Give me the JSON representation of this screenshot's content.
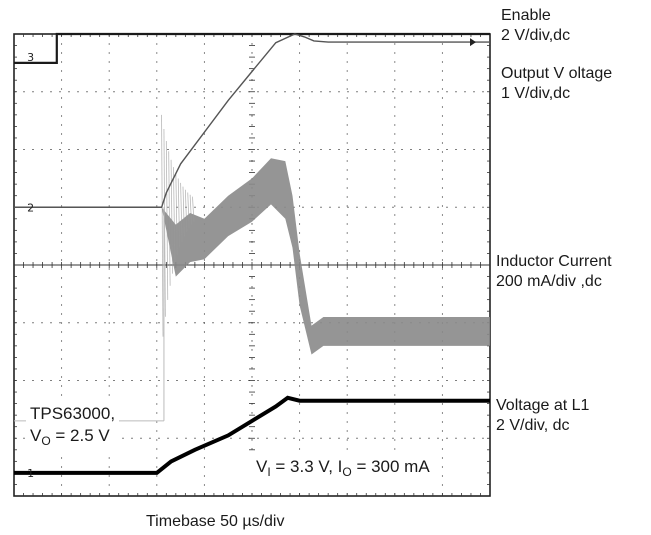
{
  "chart_data": {
    "type": "line",
    "title": "",
    "xlabel": "Timebase 50 µs/div",
    "ylabel": "",
    "grid": true,
    "grid_divisions": {
      "x": 10,
      "y": 8
    },
    "xlim": [
      0,
      10
    ],
    "ylim": [
      0,
      8
    ],
    "units": "divisions",
    "series": [
      {
        "name": "Enable",
        "label_line1": "Enable",
        "label_line2": "2 V/div,dc",
        "color": "#1a1a1a",
        "marker": "3",
        "x": [
          0,
          0.9,
          0.9,
          10
        ],
        "y": [
          7.5,
          7.5,
          8.0,
          8.0
        ]
      },
      {
        "name": "Output V oltage",
        "label_line1": "Output V oltage",
        "label_line2": "1 V/div,dc",
        "color": "#555555",
        "marker": "2",
        "x": [
          0,
          3.1,
          3.2,
          3.5,
          4.0,
          4.5,
          5.0,
          5.5,
          5.9,
          6.1,
          6.3,
          6.6,
          7.0,
          10
        ],
        "y": [
          5.0,
          5.0,
          5.25,
          5.75,
          6.3,
          6.85,
          7.35,
          7.85,
          8.0,
          7.95,
          7.88,
          7.86,
          7.86,
          7.86
        ]
      },
      {
        "name": "Inductor Current",
        "label_line1": "Inductor Current",
        "label_line2": "200 mA/div ,dc",
        "color": "#8a8a8a",
        "marker": "",
        "envelope_upper": {
          "x": [
            3.1,
            3.4,
            3.7,
            4.0,
            4.5,
            5.0,
            5.4,
            5.7,
            5.85,
            6.0,
            6.25,
            6.5,
            10
          ],
          "y": [
            5.0,
            4.7,
            4.9,
            4.8,
            5.2,
            5.5,
            5.85,
            5.8,
            5.2,
            4.2,
            2.95,
            3.1,
            3.1
          ]
        },
        "envelope_lower": {
          "x": [
            3.1,
            3.4,
            3.7,
            4.0,
            4.5,
            5.0,
            5.4,
            5.7,
            5.85,
            6.0,
            6.25,
            6.5,
            10
          ],
          "y": [
            5.0,
            3.8,
            4.05,
            4.1,
            4.5,
            4.75,
            5.05,
            4.8,
            4.3,
            3.3,
            2.45,
            2.6,
            2.6
          ]
        }
      },
      {
        "name": "Voltage at L1",
        "label_line1": "Voltage at L1",
        "label_line2": "2 V/div, dc",
        "color": "#000000",
        "marker": "1",
        "x": [
          0,
          3.0,
          3.3,
          3.8,
          4.5,
          5.0,
          5.5,
          5.75,
          6.0,
          10
        ],
        "y": [
          0.4,
          0.4,
          0.6,
          0.8,
          1.05,
          1.3,
          1.55,
          1.7,
          1.65,
          1.65
        ]
      }
    ],
    "annotations": {
      "device": "TPS63000,",
      "vo_main": "V",
      "vo_sub": "O",
      "vo_rest": " = 2.5 V",
      "cond_v": "V",
      "cond_vsub": "I",
      "cond_mid": " = 3.3 V, I",
      "cond_isub": "O",
      "cond_rest": " = 300 mA"
    }
  }
}
